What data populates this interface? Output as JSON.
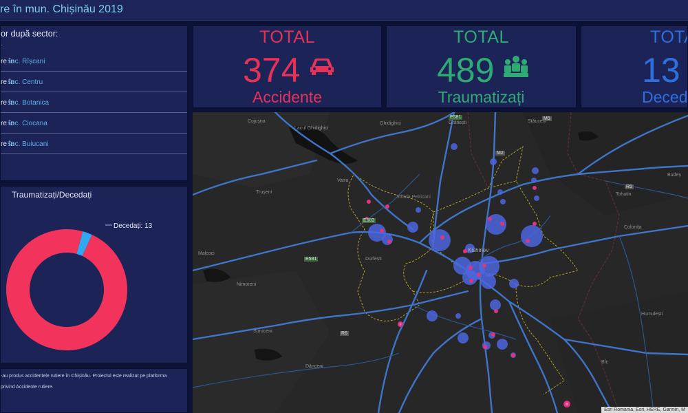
{
  "header": {
    "title": "re în mun. Chișinău 2019"
  },
  "sectors": {
    "title": "or după sector:",
    "subtitle": ".",
    "items": [
      {
        "prefix": "re în",
        "name": "sec. Rîșcani"
      },
      {
        "prefix": "re în",
        "name": "sec. Centru"
      },
      {
        "prefix": "re în",
        "name": "sec. Botanica"
      },
      {
        "prefix": "re în",
        "name": "sec. Ciocana"
      },
      {
        "prefix": "re în",
        "name": "sec. Buiucani"
      }
    ]
  },
  "donut": {
    "title": "Traumatizați/Decedați",
    "label": "Decedați: 13",
    "colors": {
      "injured": "#f2345c",
      "dead": "#2ea8f0"
    },
    "slices": [
      {
        "name": "Traumatizați",
        "value": 489
      },
      {
        "name": "Decedați",
        "value": 13
      }
    ]
  },
  "description": {
    "line1": "-au produs accidentele rutiere în Chișinău. Proiectul este realizat pe platforma",
    "line2": "privind Accidente rutiere."
  },
  "stats": [
    {
      "label": "TOTAL",
      "value": "374",
      "caption": "Accidente",
      "color": "#e63258",
      "icon": "car-icon"
    },
    {
      "label": "TOTAL",
      "value": "489",
      "caption": "Traumatizați",
      "color": "#2faa72",
      "icon": "people-icon"
    },
    {
      "label": "TOTA",
      "value": "13",
      "caption": "Deced",
      "color": "#2e6fe0",
      "icon": "cross-icon"
    }
  ],
  "map": {
    "labels": {
      "cojusna": "Cojușna",
      "lacul": "Lacul Ghidighici",
      "ghidighici": "Ghidighici",
      "gratiesti": "Grătiești",
      "stauceni": "Stăuceni",
      "vatra": "Vatra",
      "truseni": "Trușeni",
      "strada": "Strada Petricani",
      "kishinev": "Kishinev",
      "durlesti": "Durlești",
      "malcoci": "Malcoci",
      "nimoreni": "Nimoreni",
      "suruceni": "Suruceni",
      "danceni": "Dănceni",
      "budesti": "Budeș",
      "tohatin": "Tohatin",
      "colonita": "Colonița",
      "humulesti": "Humulești",
      "bic": "Bîc",
      "e581": "E581",
      "e583": "E583",
      "m2": "M2",
      "m5": "M5",
      "r5": "R5",
      "r6": "R6"
    },
    "attribution": "Esri Romania, Esri, HERE, Garmin, M"
  }
}
